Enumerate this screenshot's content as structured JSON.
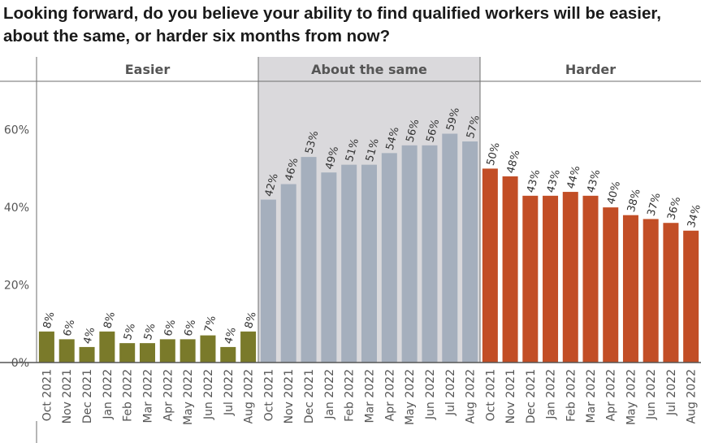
{
  "title": "Looking forward, do you believe your ability to find qualified workers will be easier, about the same, or harder six months from now?",
  "chart_data": {
    "type": "bar",
    "title": "Looking forward, do you believe your ability to find qualified workers will be easier, about the same, or harder six months from now?",
    "ylim": [
      0,
      70
    ],
    "yticks": [
      "0%",
      "20%",
      "40%",
      "60%"
    ],
    "ytick_values": [
      0,
      20,
      40,
      60
    ],
    "grid": false,
    "panels": [
      {
        "name": "Easier",
        "color": "#7a7a2a",
        "highlight": false,
        "categories": [
          "Oct 2021",
          "Nov 2021",
          "Dec 2021",
          "Jan 2022",
          "Feb 2022",
          "Mar 2022",
          "Apr 2022",
          "May 2022",
          "Jun 2022",
          "Jul 2022",
          "Aug 2022"
        ],
        "values": [
          8,
          6,
          4,
          8,
          5,
          5,
          6,
          6,
          7,
          4,
          8
        ],
        "labels": [
          "8%",
          "6%",
          "4%",
          "8%",
          "5%",
          "5%",
          "6%",
          "6%",
          "7%",
          "4%",
          "8%"
        ]
      },
      {
        "name": "About the same",
        "color": "#a5afbd",
        "highlight": true,
        "categories": [
          "Oct 2021",
          "Nov 2021",
          "Dec 2021",
          "Jan 2022",
          "Feb 2022",
          "Mar 2022",
          "Apr 2022",
          "May 2022",
          "Jun 2022",
          "Jul 2022",
          "Aug 2022"
        ],
        "values": [
          42,
          46,
          53,
          49,
          51,
          51,
          54,
          56,
          56,
          59,
          57
        ],
        "labels": [
          "42%",
          "46%",
          "53%",
          "49%",
          "51%",
          "51%",
          "54%",
          "56%",
          "56%",
          "59%",
          "57%"
        ]
      },
      {
        "name": "Harder",
        "color": "#c24e26",
        "highlight": false,
        "categories": [
          "Oct 2021",
          "Nov 2021",
          "Dec 2021",
          "Jan 2022",
          "Feb 2022",
          "Mar 2022",
          "Apr 2022",
          "May 2022",
          "Jun 2022",
          "Jul 2022",
          "Aug 2022"
        ],
        "values": [
          50,
          48,
          43,
          43,
          44,
          43,
          40,
          38,
          37,
          36,
          34
        ],
        "labels": [
          "50%",
          "48%",
          "43%",
          "43%",
          "44%",
          "43%",
          "40%",
          "38%",
          "37%",
          "36%",
          "34%"
        ]
      }
    ]
  }
}
